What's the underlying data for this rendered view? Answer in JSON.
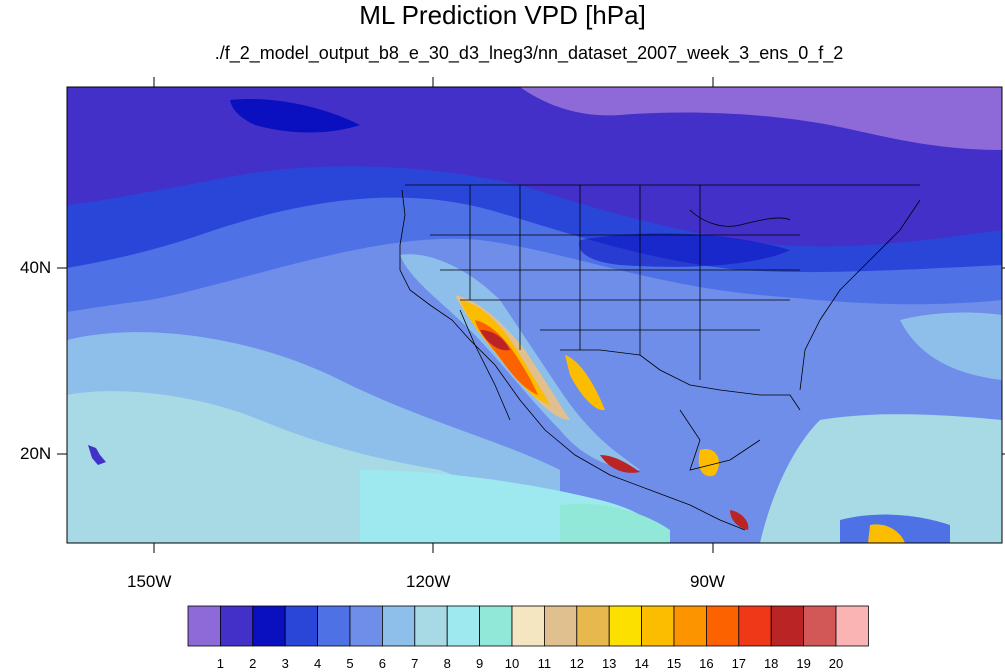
{
  "title": "ML Prediction VPD [hPa]",
  "subtitle": "./f_2_model_output_b8_e_30_d3_lneg3/nn_dataset_2007_week_3_ens_0_f_2",
  "axes": {
    "lat_labels": [
      "40N",
      "20N"
    ],
    "lon_labels": [
      "150W",
      "120W",
      "90W"
    ]
  },
  "colorbar": {
    "colors": [
      "#8e6ad8",
      "#4230c8",
      "#0a10c0",
      "#2a46d8",
      "#4e72e6",
      "#6e8eea",
      "#8ebeea",
      "#a8dae6",
      "#9ee8f0",
      "#92e8d8",
      "#f4e6c0",
      "#e0c08e",
      "#e6b84e",
      "#fce000",
      "#fcbc00",
      "#fc9400",
      "#fc6200",
      "#ee3818",
      "#ba2424",
      "#d25858",
      "#fab4b4"
    ],
    "labels": [
      "1",
      "2",
      "3",
      "4",
      "5",
      "6",
      "7",
      "8",
      "9",
      "10",
      "11",
      "12",
      "13",
      "14",
      "15",
      "16",
      "17",
      "18",
      "19",
      "20"
    ]
  }
}
